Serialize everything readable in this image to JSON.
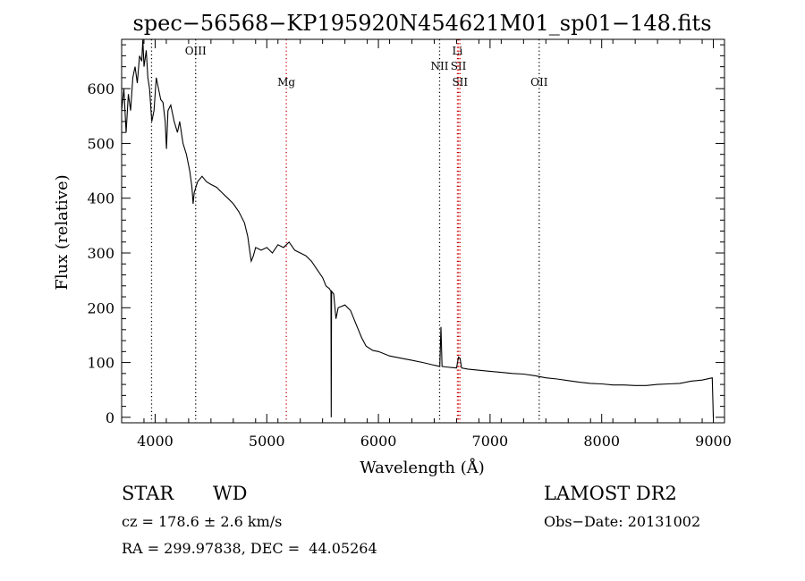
{
  "chart_data": {
    "type": "line",
    "title": "spec−56568−KP195920N454621M01_sp01−148.fits",
    "xlabel": "Wavelength (Å)",
    "ylabel": "Flux (relative)",
    "xlim": [
      3700,
      9100
    ],
    "ylim": [
      -10,
      690
    ],
    "x_ticks": [
      4000,
      5000,
      6000,
      7000,
      8000,
      9000
    ],
    "y_ticks": [
      0,
      100,
      200,
      300,
      400,
      500,
      600
    ],
    "grid": false,
    "series": [
      {
        "color": "#000000",
        "points": [
          [
            3700,
            560
          ],
          [
            3720,
            600
          ],
          [
            3740,
            520
          ],
          [
            3760,
            590
          ],
          [
            3780,
            560
          ],
          [
            3800,
            620
          ],
          [
            3820,
            640
          ],
          [
            3840,
            610
          ],
          [
            3860,
            660
          ],
          [
            3880,
            650
          ],
          [
            3890,
            690
          ],
          [
            3900,
            640
          ],
          [
            3920,
            670
          ],
          [
            3935,
            620
          ],
          [
            3950,
            600
          ],
          [
            3970,
            540
          ],
          [
            3990,
            560
          ],
          [
            4010,
            620
          ],
          [
            4030,
            600
          ],
          [
            4050,
            580
          ],
          [
            4070,
            575
          ],
          [
            4090,
            540
          ],
          [
            4101,
            490
          ],
          [
            4115,
            560
          ],
          [
            4140,
            570
          ],
          [
            4170,
            540
          ],
          [
            4200,
            520
          ],
          [
            4220,
            540
          ],
          [
            4250,
            500
          ],
          [
            4280,
            480
          ],
          [
            4310,
            450
          ],
          [
            4330,
            420
          ],
          [
            4340,
            390
          ],
          [
            4350,
            410
          ],
          [
            4380,
            430
          ],
          [
            4420,
            440
          ],
          [
            4460,
            430
          ],
          [
            4500,
            425
          ],
          [
            4550,
            420
          ],
          [
            4600,
            410
          ],
          [
            4650,
            400
          ],
          [
            4700,
            390
          ],
          [
            4750,
            375
          ],
          [
            4800,
            355
          ],
          [
            4830,
            330
          ],
          [
            4850,
            300
          ],
          [
            4861,
            285
          ],
          [
            4880,
            295
          ],
          [
            4900,
            310
          ],
          [
            4950,
            305
          ],
          [
            5000,
            310
          ],
          [
            5050,
            300
          ],
          [
            5100,
            315
          ],
          [
            5150,
            310
          ],
          [
            5200,
            320
          ],
          [
            5250,
            305
          ],
          [
            5300,
            300
          ],
          [
            5350,
            295
          ],
          [
            5400,
            285
          ],
          [
            5450,
            270
          ],
          [
            5500,
            255
          ],
          [
            5530,
            240
          ],
          [
            5560,
            235
          ],
          [
            5575,
            230
          ],
          [
            5577,
            0
          ],
          [
            5580,
            230
          ],
          [
            5600,
            225
          ],
          [
            5620,
            180
          ],
          [
            5640,
            200
          ],
          [
            5700,
            205
          ],
          [
            5750,
            195
          ],
          [
            5800,
            170
          ],
          [
            5850,
            145
          ],
          [
            5890,
            130
          ],
          [
            5950,
            122
          ],
          [
            6000,
            120
          ],
          [
            6100,
            112
          ],
          [
            6200,
            108
          ],
          [
            6300,
            104
          ],
          [
            6400,
            100
          ],
          [
            6500,
            95
          ],
          [
            6550,
            93
          ],
          [
            6560,
            165
          ],
          [
            6570,
            93
          ],
          [
            6600,
            92
          ],
          [
            6700,
            90
          ],
          [
            6717,
            110
          ],
          [
            6731,
            108
          ],
          [
            6745,
            90
          ],
          [
            6800,
            88
          ],
          [
            6900,
            86
          ],
          [
            7000,
            84
          ],
          [
            7100,
            82
          ],
          [
            7200,
            80
          ],
          [
            7300,
            79
          ],
          [
            7400,
            76
          ],
          [
            7500,
            72
          ],
          [
            7600,
            70
          ],
          [
            7700,
            67
          ],
          [
            7800,
            64
          ],
          [
            7900,
            62
          ],
          [
            8000,
            61
          ],
          [
            8100,
            59
          ],
          [
            8200,
            59
          ],
          [
            8300,
            58
          ],
          [
            8400,
            58
          ],
          [
            8500,
            60
          ],
          [
            8600,
            61
          ],
          [
            8700,
            62
          ],
          [
            8800,
            66
          ],
          [
            8900,
            68
          ],
          [
            8990,
            72
          ],
          [
            9000,
            0
          ]
        ]
      }
    ],
    "lines": [
      {
        "x": 3968,
        "label": "",
        "color": "#000000",
        "label_row": 0
      },
      {
        "x": 4363,
        "label": "OIII",
        "color": "#000000",
        "label_row": 0
      },
      {
        "x": 5175,
        "label": "Mg",
        "color": "#cc0000",
        "label_row": 2
      },
      {
        "x": 6548,
        "label": "NII",
        "color": "#000000",
        "label_row": 1
      },
      {
        "x": 6708,
        "label": "Li",
        "color": "#cc0000",
        "label_row": 0
      },
      {
        "x": 6717,
        "label": "SII",
        "color": "#cc0000",
        "label_row": 1
      },
      {
        "x": 6731,
        "label": "SII",
        "color": "#cc0000",
        "label_row": 2
      },
      {
        "x": 7440,
        "label": "OII",
        "color": "#000000",
        "label_row": 2
      }
    ]
  },
  "info": {
    "object_type": "STAR",
    "subclass": "WD",
    "survey": "LAMOST DR2",
    "cz": "cz = 178.6 ± 2.6 km/s",
    "obs_date": "Obs−Date: 20131002",
    "coords": "RA = 299.97838, DEC =  44.05264"
  }
}
